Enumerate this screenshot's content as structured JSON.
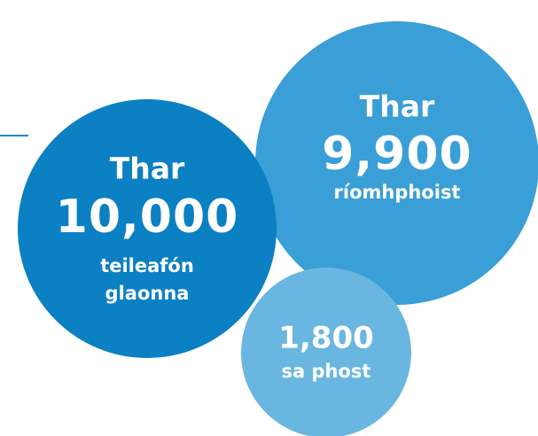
{
  "bubbles": [
    {
      "prefix": "Thar",
      "number": "10,000",
      "lines": [
        "teileafón",
        "glaonna"
      ]
    },
    {
      "prefix": "Thar",
      "number": "9,900",
      "lines": [
        "ríomhphoist"
      ]
    },
    {
      "number": "1,800",
      "lines": [
        "sa phost"
      ]
    }
  ]
}
